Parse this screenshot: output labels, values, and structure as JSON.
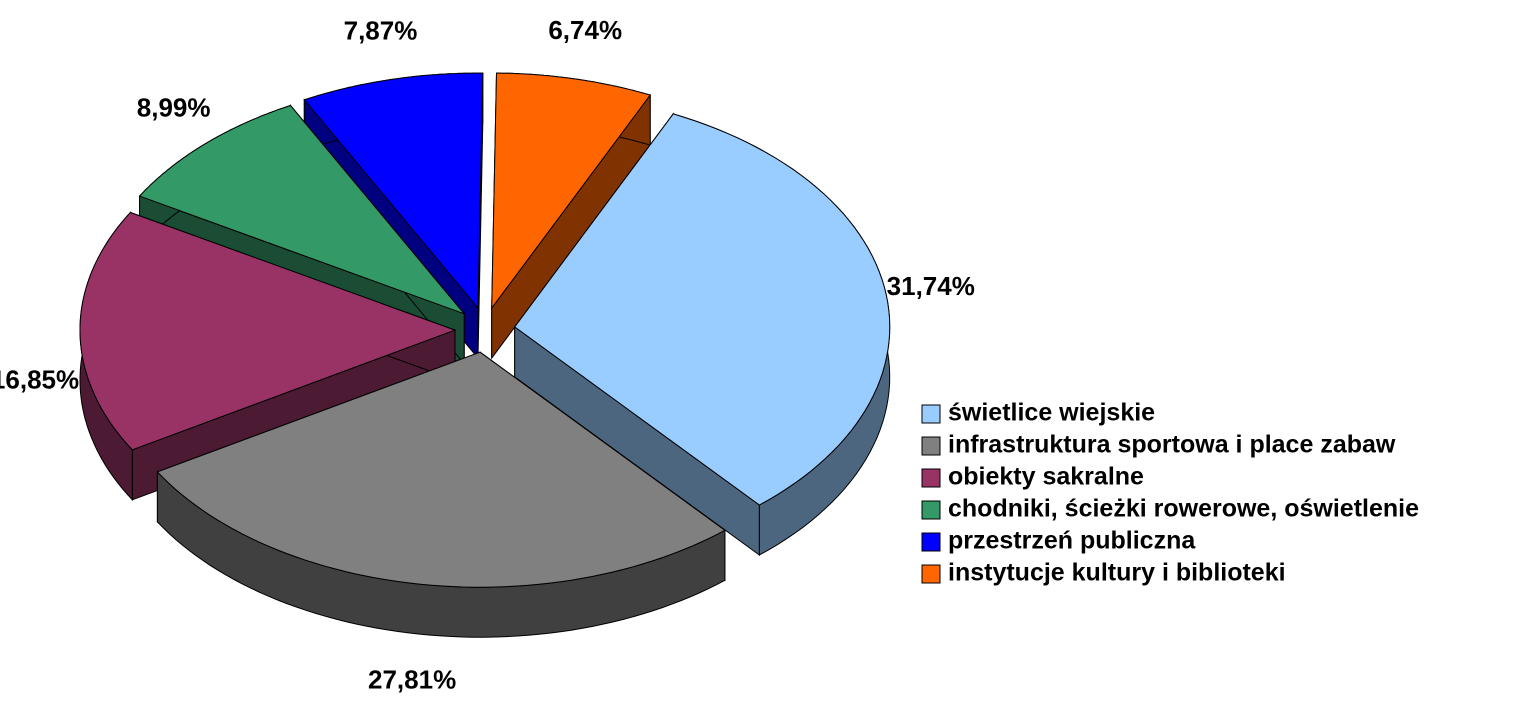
{
  "chart_data": {
    "type": "pie3d",
    "categories": [
      "świetlice wiejskie",
      "infrastruktura sportowa i place zabaw",
      "obiekty sakralne",
      "chodniki, ścieżki rowerowe, oświetlenie",
      "przestrzeń publiczna",
      "instytucje kultury i biblioteki"
    ],
    "values": [
      31.74,
      27.81,
      16.85,
      8.99,
      7.87,
      6.74
    ],
    "value_labels": [
      "31,74%",
      "27,81%",
      "16,85%",
      "8,99%",
      "7,87%",
      "6,74%"
    ],
    "colors": [
      "#99ccff",
      "#808080",
      "#993366",
      "#339966",
      "#0000ff",
      "#ff6600"
    ],
    "legend": "right"
  }
}
